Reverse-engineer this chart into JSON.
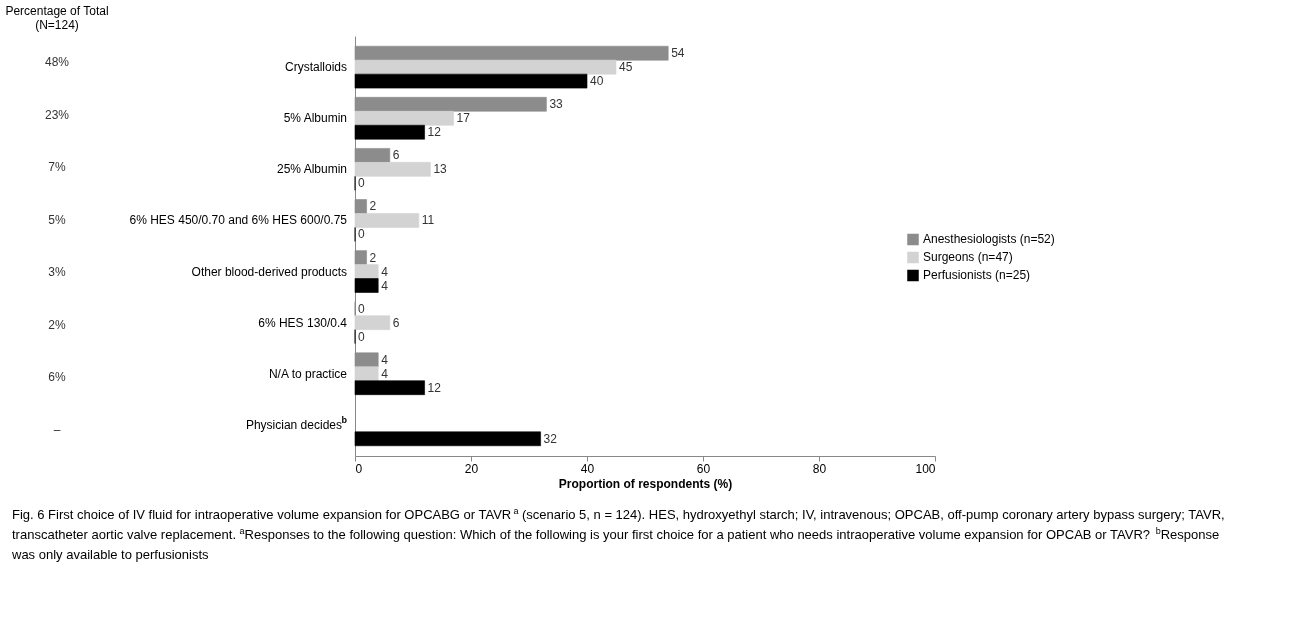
{
  "chart_data": {
    "type": "bar",
    "orientation": "horizontal",
    "categories": [
      "Crystalloids",
      "5% Albumin",
      "25% Albumin",
      "6% HES 450/0.70 and 6% HES 600/0.75",
      "Other blood-derived products",
      "6% HES 130/0.4",
      "N/A to practice",
      "Physician decides$^{b}$"
    ],
    "series": [
      {
        "name": "Anesthesiologists (n=52)",
        "color": "#8c8c8c",
        "values": [
          54,
          33,
          6,
          2,
          2,
          0,
          4,
          null
        ]
      },
      {
        "name": "Surgeons (n=47)",
        "color": "#d3d3d3",
        "values": [
          45,
          17,
          13,
          11,
          4,
          6,
          4,
          null
        ]
      },
      {
        "name": "Perfusionists (n=25)",
        "color": "#000000",
        "values": [
          40,
          12,
          0,
          0,
          4,
          0,
          12,
          32
        ]
      }
    ],
    "xlabel": "Proportion of respondents (%)",
    "xlim": [
      0,
      100
    ],
    "xticks": [
      0,
      20,
      40,
      60,
      80,
      100
    ],
    "grid": false,
    "legend": "right",
    "data_labels": true,
    "annotations": [
      "Percentage of Total\n(N=124)",
      "48%",
      "23%",
      "7%",
      "5%",
      "3%",
      "2%",
      "6%",
      "–",
      "Fig. 6 First choice of IV fluid for intraoperative volume expansion for OPCABG or TAVR$^{a}$ (scenario 5, n = 124). HES, hydroxyethyl starch; IV, intravenous; OPCAB, off-pump coronary artery bypass surgery; TAVR, transcatheter aortic valve replacement. $^{a}$Responses to the following question: Which of the following is your first choice for a patient who needs intraoperative volume expansion for OPCAB or TAVR? $^{b}$Response was only available to perfusionists"
    ]
  }
}
